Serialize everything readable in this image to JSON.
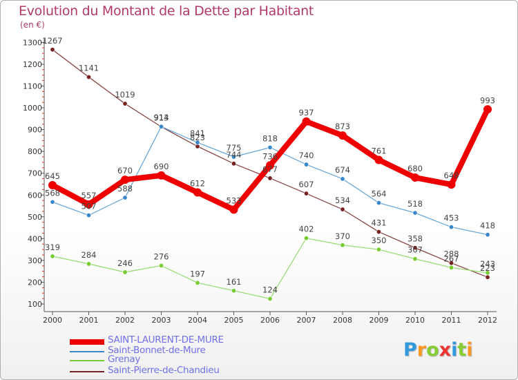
{
  "chart_data": {
    "type": "line",
    "title": "Evolution du Montant de la Dette par Habitant",
    "subtitle": "(en €)",
    "x": [
      "2000",
      "2001",
      "2002",
      "2003",
      "2004",
      "2005",
      "2006",
      "2007",
      "2008",
      "2009",
      "2010",
      "2011",
      "2012"
    ],
    "ylim": [
      100,
      1300
    ],
    "yticks": [
      100,
      200,
      300,
      400,
      500,
      600,
      700,
      800,
      900,
      1000,
      1100,
      1200,
      1300
    ],
    "grid": false,
    "legend_position": "bottom-left",
    "series": [
      {
        "name": "SAINT-LAURENT-DE-MURE",
        "color": "#ee0000",
        "width": 8,
        "marker_color": "#ee0000",
        "values": [
          645,
          557,
          670,
          690,
          612,
          533,
          736,
          937,
          873,
          761,
          680,
          648,
          993
        ]
      },
      {
        "name": "Saint-Bonnet-de-Mure",
        "color": "#6aa8d8",
        "width": 1.3,
        "marker_color": "#3a88cc",
        "values": [
          568,
          507,
          588,
          914,
          841,
          775,
          818,
          740,
          674,
          564,
          518,
          453,
          418
        ]
      },
      {
        "name": "Grenay",
        "color": "#99dd77",
        "width": 1.3,
        "marker_color": "#77cc33",
        "values": [
          319,
          284,
          246,
          276,
          197,
          161,
          124,
          402,
          370,
          350,
          307,
          267,
          243
        ]
      },
      {
        "name": "Saint-Pierre-de-Chandieu",
        "color": "#884444",
        "width": 1.3,
        "marker_color": "#772222",
        "values": [
          1267,
          1141,
          1019,
          913,
          823,
          744,
          677,
          607,
          534,
          431,
          358,
          288,
          223
        ]
      }
    ]
  },
  "logo": {
    "letters": [
      "P",
      "r",
      "o",
      "x",
      "i",
      "t",
      "i"
    ],
    "colors": [
      "#3399dd",
      "#ff9922",
      "#88cc33",
      "#ee3333",
      "#3399dd",
      "#88cc33",
      "#ff9922"
    ]
  }
}
